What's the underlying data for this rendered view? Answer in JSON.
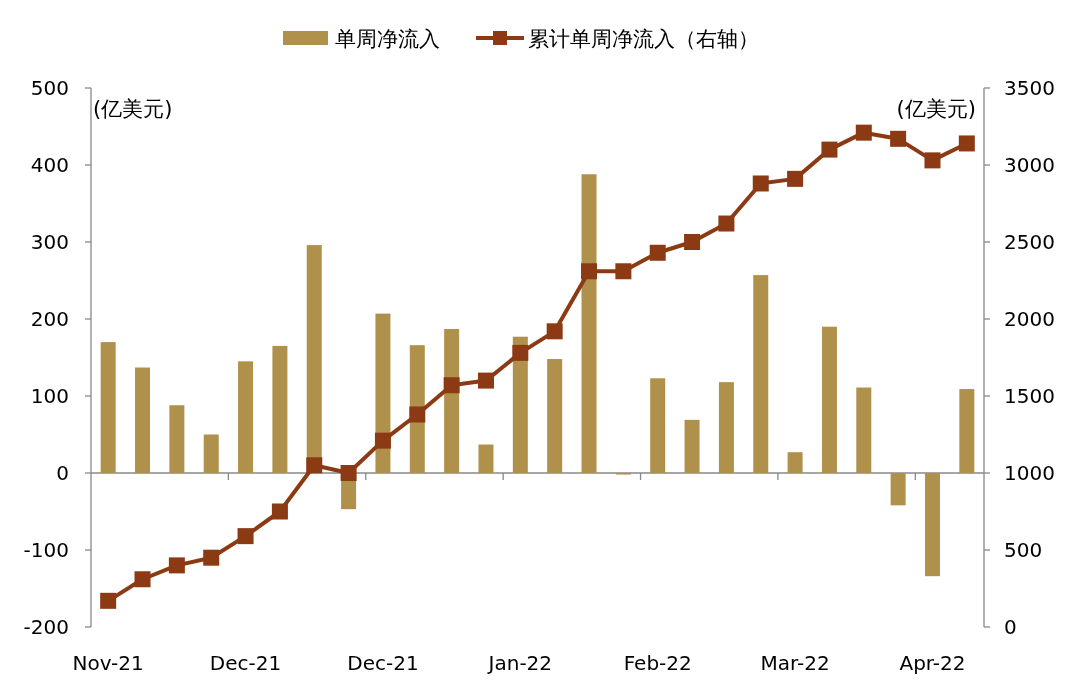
{
  "chart_data": {
    "type": "bar",
    "categories": [
      "Nov-21",
      null,
      null,
      null,
      "Dec-21",
      null,
      null,
      null,
      "Dec-21",
      null,
      null,
      null,
      "Jan-22",
      null,
      null,
      null,
      "Feb-22",
      null,
      null,
      null,
      "Mar-22",
      null,
      null,
      null,
      "Apr-22",
      null
    ],
    "series": [
      {
        "name": "单周净流入",
        "color": "#b0914c",
        "values": [
          170,
          137,
          88,
          50,
          145,
          165,
          296,
          -47,
          207,
          166,
          187,
          37,
          177,
          148,
          388,
          -2,
          123,
          69,
          118,
          257,
          27,
          190,
          111,
          -42,
          -134,
          109
        ]
      },
      {
        "name": "累计单周净流入（右轴）",
        "type": "line",
        "axis": "y2",
        "color": "#8b3a14",
        "values": [
          170,
          310,
          400,
          450,
          590,
          750,
          1050,
          1000,
          1210,
          1380,
          1570,
          1600,
          1780,
          1920,
          2310,
          2310,
          2430,
          2500,
          2620,
          2880,
          2910,
          3100,
          3210,
          3170,
          3030,
          3140
        ]
      }
    ],
    "ylim": [
      -200,
      500
    ],
    "yticks": [
      -200,
      -100,
      0,
      100,
      200,
      300,
      400,
      500
    ],
    "y2lim": [
      0,
      3500
    ],
    "y2ticks": [
      0,
      500,
      1000,
      1500,
      2000,
      2500,
      3000,
      3500
    ],
    "ylabel": "(亿美元)",
    "y2label": "(亿美元)",
    "marker": "square",
    "legend": "top"
  }
}
